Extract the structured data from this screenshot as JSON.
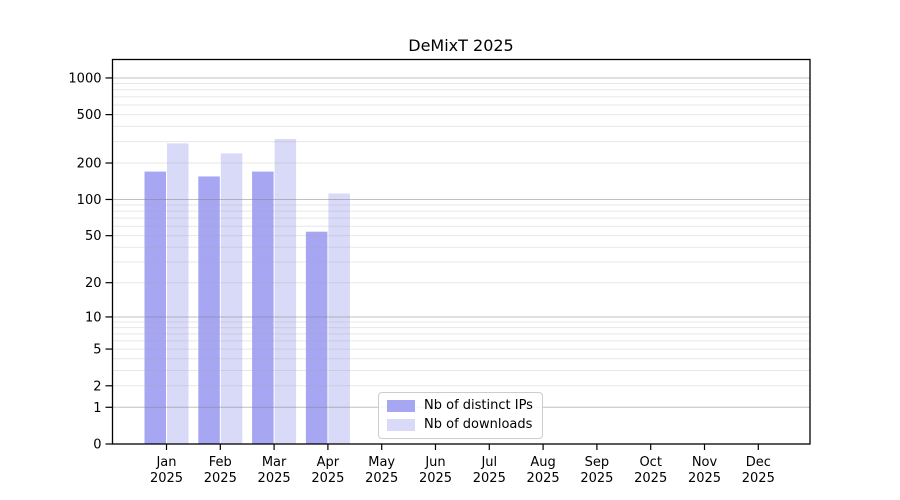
{
  "chart_data": {
    "type": "bar",
    "title": "DeMixT 2025",
    "year": "2025",
    "categories": [
      "Jan",
      "Feb",
      "Mar",
      "Apr",
      "May",
      "Jun",
      "Jul",
      "Aug",
      "Sep",
      "Oct",
      "Nov",
      "Dec"
    ],
    "series": [
      {
        "name": "Nb of distinct IPs",
        "color": "#a6a6f2",
        "values": [
          170,
          155,
          170,
          54,
          null,
          null,
          null,
          null,
          null,
          null,
          null,
          null
        ]
      },
      {
        "name": "Nb of downloads",
        "color": "#d9d9f8",
        "values": [
          290,
          240,
          315,
          112,
          null,
          null,
          null,
          null,
          null,
          null,
          null,
          null
        ]
      }
    ],
    "yticks": [
      0,
      1,
      2,
      5,
      10,
      20,
      50,
      100,
      200,
      500,
      1000
    ],
    "yscale": "log1p",
    "ylim": [
      0,
      1430
    ],
    "grid": true,
    "legend_position": "bottom-center"
  }
}
